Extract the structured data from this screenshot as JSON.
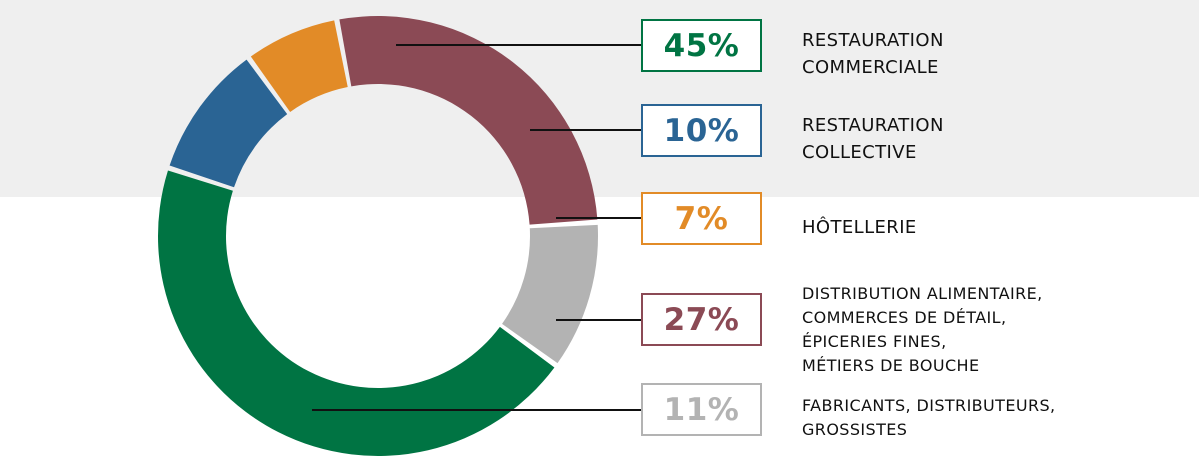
{
  "chart_data": {
    "type": "pie",
    "title": "",
    "slices": [
      {
        "label": "RESTAURATION\nCOMMERCIALE",
        "value": 45,
        "display": "45%",
        "color": "#007443"
      },
      {
        "label": "RESTAURATION\nCOLLECTIVE",
        "value": 10,
        "display": "10%",
        "color": "#2a6494"
      },
      {
        "label": "HÔTELLERIE",
        "value": 7,
        "display": "7%",
        "color": "#e28b27"
      },
      {
        "label": "DISTRIBUTION ALIMENTAIRE,\nCOMMERCES DE DÉTAIL,\nÉPICERIES FINES,\nMÉTIERS DE BOUCHE",
        "value": 27,
        "display": "27%",
        "color": "#8b4a55"
      },
      {
        "label": "FABRICANTS, DISTRIBUTEURS,\nGROSSISTES",
        "value": 11,
        "display": "11%",
        "color": "#b3b3b3"
      }
    ],
    "legend": "right"
  }
}
